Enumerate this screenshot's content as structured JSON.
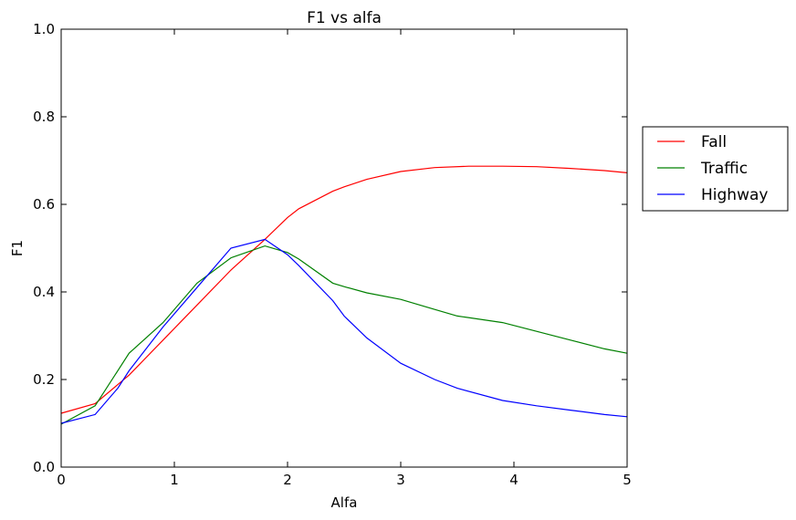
{
  "chart_data": {
    "type": "line",
    "title": "F1 vs alfa",
    "xlabel": "Alfa",
    "ylabel": "F1",
    "xlim": [
      0,
      5
    ],
    "ylim": [
      0,
      1
    ],
    "xticks": [
      "0",
      "1",
      "2",
      "3",
      "4",
      "5"
    ],
    "yticks": [
      "0.0",
      "0.2",
      "0.4",
      "0.6",
      "0.8",
      "1.0"
    ],
    "grid": false,
    "legend_position": "outside-right",
    "series": [
      {
        "name": "Fall",
        "color": "#ff0000",
        "points": [
          [
            0,
            0.123
          ],
          [
            0.3,
            0.145
          ],
          [
            0.6,
            0.21
          ],
          [
            0.9,
            0.29
          ],
          [
            1.2,
            0.37
          ],
          [
            1.5,
            0.45
          ],
          [
            1.8,
            0.52
          ],
          [
            2.0,
            0.57
          ],
          [
            2.1,
            0.59
          ],
          [
            2.4,
            0.63
          ],
          [
            2.5,
            0.64
          ],
          [
            2.7,
            0.657
          ],
          [
            3.0,
            0.675
          ],
          [
            3.3,
            0.684
          ],
          [
            3.6,
            0.687
          ],
          [
            3.9,
            0.687
          ],
          [
            4.2,
            0.686
          ],
          [
            4.5,
            0.682
          ],
          [
            4.8,
            0.677
          ],
          [
            5.0,
            0.672
          ]
        ]
      },
      {
        "name": "Traffic",
        "color": "#008000",
        "points": [
          [
            0,
            0.098
          ],
          [
            0.3,
            0.14
          ],
          [
            0.5,
            0.22
          ],
          [
            0.6,
            0.26
          ],
          [
            0.9,
            0.33
          ],
          [
            1.2,
            0.42
          ],
          [
            1.5,
            0.478
          ],
          [
            1.8,
            0.505
          ],
          [
            2.0,
            0.49
          ],
          [
            2.1,
            0.475
          ],
          [
            2.4,
            0.42
          ],
          [
            2.5,
            0.412
          ],
          [
            2.7,
            0.398
          ],
          [
            3.0,
            0.383
          ],
          [
            3.3,
            0.36
          ],
          [
            3.5,
            0.345
          ],
          [
            3.9,
            0.33
          ],
          [
            4.2,
            0.31
          ],
          [
            4.5,
            0.29
          ],
          [
            4.8,
            0.27
          ],
          [
            5.0,
            0.26
          ]
        ]
      },
      {
        "name": "Highway",
        "color": "#0000ff",
        "points": [
          [
            0,
            0.1
          ],
          [
            0.3,
            0.12
          ],
          [
            0.5,
            0.18
          ],
          [
            0.6,
            0.22
          ],
          [
            0.9,
            0.32
          ],
          [
            1.2,
            0.41
          ],
          [
            1.5,
            0.5
          ],
          [
            1.8,
            0.52
          ],
          [
            2.0,
            0.485
          ],
          [
            2.1,
            0.46
          ],
          [
            2.4,
            0.38
          ],
          [
            2.5,
            0.345
          ],
          [
            2.7,
            0.295
          ],
          [
            3.0,
            0.237
          ],
          [
            3.3,
            0.2
          ],
          [
            3.5,
            0.18
          ],
          [
            3.9,
            0.152
          ],
          [
            4.2,
            0.14
          ],
          [
            4.5,
            0.13
          ],
          [
            4.8,
            0.12
          ],
          [
            5.0,
            0.115
          ]
        ]
      }
    ]
  }
}
